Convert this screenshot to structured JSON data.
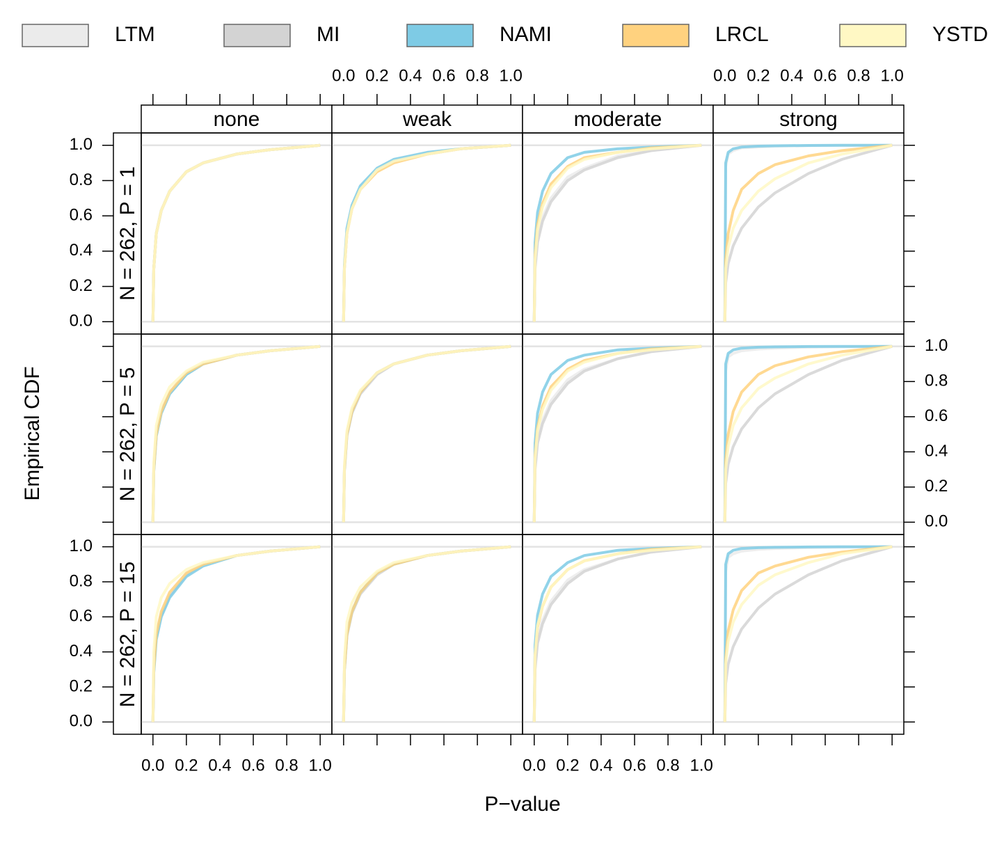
{
  "chart_data": {
    "type": "line",
    "x_label": "P−value",
    "y_label": "Empirical CDF",
    "columns": [
      "none",
      "weak",
      "moderate",
      "strong"
    ],
    "series": [
      {
        "name": "LTM",
        "color": "#ebebeb"
      },
      {
        "name": "MI",
        "color": "#d3d3d3"
      },
      {
        "name": "NAMI",
        "color": "#7ecbe5"
      },
      {
        "name": "LRCL",
        "color": "#ffd27f"
      },
      {
        "name": "YSTD",
        "color": "#fff8c4"
      }
    ],
    "x": [
      0,
      0.005,
      0.02,
      0.05,
      0.1,
      0.2,
      0.3,
      0.5,
      0.7,
      1.0
    ],
    "xlim": [
      -0.07,
      1.07
    ],
    "ylim": [
      -0.07,
      1.07
    ],
    "xticks": [
      {
        "value": 0,
        "label": "0.0"
      },
      0.2,
      0.4,
      0.6,
      0.8,
      {
        "value": 1,
        "label": "1.0"
      }
    ],
    "yticks": [
      {
        "value": 0,
        "label": "0.0"
      },
      0.2,
      0.4,
      0.6,
      0.8,
      {
        "value": 1,
        "label": "1.0"
      }
    ],
    "rows": [
      {
        "label": "N = 262, P = 1",
        "panels": [
          {
            "values": [
              [
                0,
                0.3,
                0.5,
                0.63,
                0.74,
                0.85,
                0.9,
                0.95,
                0.975,
                1
              ],
              [
                0,
                0.3,
                0.5,
                0.63,
                0.74,
                0.85,
                0.9,
                0.95,
                0.975,
                1
              ],
              [
                0,
                0.3,
                0.5,
                0.63,
                0.74,
                0.85,
                0.9,
                0.95,
                0.975,
                1
              ],
              [
                0,
                0.3,
                0.5,
                0.63,
                0.74,
                0.85,
                0.9,
                0.95,
                0.975,
                1
              ],
              [
                0,
                0.3,
                0.5,
                0.63,
                0.74,
                0.85,
                0.9,
                0.95,
                0.975,
                1
              ]
            ]
          },
          {
            "values": [
              [
                0,
                0.3,
                0.5,
                0.64,
                0.75,
                0.86,
                0.91,
                0.95,
                0.98,
                1
              ],
              [
                0,
                0.3,
                0.5,
                0.64,
                0.75,
                0.86,
                0.91,
                0.95,
                0.98,
                1
              ],
              [
                0,
                0.32,
                0.53,
                0.66,
                0.77,
                0.87,
                0.92,
                0.96,
                0.98,
                1
              ],
              [
                0,
                0.3,
                0.5,
                0.64,
                0.75,
                0.85,
                0.9,
                0.95,
                0.98,
                1
              ],
              [
                0,
                0.3,
                0.5,
                0.64,
                0.75,
                0.86,
                0.91,
                0.95,
                0.98,
                1
              ]
            ]
          },
          {
            "values": [
              [
                0,
                0.32,
                0.47,
                0.59,
                0.7,
                0.82,
                0.87,
                0.94,
                0.97,
                1
              ],
              [
                0,
                0.3,
                0.45,
                0.57,
                0.68,
                0.8,
                0.86,
                0.93,
                0.97,
                1
              ],
              [
                0,
                0.45,
                0.62,
                0.74,
                0.84,
                0.93,
                0.96,
                0.98,
                0.99,
                1
              ],
              [
                0,
                0.38,
                0.55,
                0.67,
                0.78,
                0.88,
                0.93,
                0.96,
                0.985,
                1
              ],
              [
                0,
                0.35,
                0.52,
                0.65,
                0.76,
                0.87,
                0.92,
                0.96,
                0.98,
                1
              ]
            ]
          },
          {
            "values": [
              [
                0,
                0.88,
                0.95,
                0.97,
                0.985,
                0.99,
                0.995,
                0.998,
                1,
                1
              ],
              [
                0,
                0.22,
                0.33,
                0.43,
                0.53,
                0.65,
                0.73,
                0.84,
                0.92,
                1
              ],
              [
                0,
                0.9,
                0.96,
                0.98,
                0.99,
                0.995,
                0.997,
                0.999,
                1,
                1
              ],
              [
                0,
                0.35,
                0.5,
                0.63,
                0.75,
                0.84,
                0.89,
                0.94,
                0.97,
                1
              ],
              [
                0,
                0.3,
                0.42,
                0.53,
                0.63,
                0.74,
                0.81,
                0.9,
                0.95,
                1
              ]
            ]
          }
        ]
      },
      {
        "label": "N = 262, P = 5",
        "panels": [
          {
            "values": [
              [
                0,
                0.3,
                0.5,
                0.63,
                0.74,
                0.85,
                0.9,
                0.95,
                0.975,
                1
              ],
              [
                0,
                0.29,
                0.49,
                0.62,
                0.73,
                0.84,
                0.9,
                0.95,
                0.975,
                1
              ],
              [
                0,
                0.29,
                0.49,
                0.62,
                0.73,
                0.84,
                0.9,
                0.95,
                0.975,
                1
              ],
              [
                0,
                0.3,
                0.5,
                0.63,
                0.74,
                0.85,
                0.9,
                0.95,
                0.975,
                1
              ],
              [
                0,
                0.34,
                0.55,
                0.67,
                0.77,
                0.86,
                0.91,
                0.95,
                0.975,
                1
              ]
            ]
          },
          {
            "values": [
              [
                0,
                0.29,
                0.49,
                0.62,
                0.73,
                0.84,
                0.9,
                0.95,
                0.975,
                1
              ],
              [
                0,
                0.29,
                0.49,
                0.62,
                0.73,
                0.84,
                0.9,
                0.95,
                0.975,
                1
              ],
              [
                0,
                0.3,
                0.5,
                0.63,
                0.74,
                0.85,
                0.9,
                0.95,
                0.975,
                1
              ],
              [
                0,
                0.3,
                0.5,
                0.63,
                0.74,
                0.85,
                0.9,
                0.95,
                0.975,
                1
              ],
              [
                0,
                0.32,
                0.52,
                0.65,
                0.75,
                0.85,
                0.9,
                0.95,
                0.975,
                1
              ]
            ]
          },
          {
            "values": [
              [
                0,
                0.32,
                0.47,
                0.58,
                0.69,
                0.81,
                0.87,
                0.93,
                0.97,
                1
              ],
              [
                0,
                0.3,
                0.45,
                0.56,
                0.67,
                0.79,
                0.86,
                0.93,
                0.97,
                1
              ],
              [
                0,
                0.45,
                0.62,
                0.74,
                0.84,
                0.92,
                0.95,
                0.98,
                0.99,
                1
              ],
              [
                0,
                0.38,
                0.54,
                0.66,
                0.77,
                0.87,
                0.92,
                0.96,
                0.985,
                1
              ],
              [
                0,
                0.36,
                0.52,
                0.64,
                0.75,
                0.86,
                0.91,
                0.96,
                0.98,
                1
              ]
            ]
          },
          {
            "values": [
              [
                0,
                0.86,
                0.94,
                0.96,
                0.975,
                0.985,
                0.99,
                0.995,
                0.998,
                1
              ],
              [
                0,
                0.22,
                0.33,
                0.43,
                0.53,
                0.65,
                0.73,
                0.84,
                0.92,
                1
              ],
              [
                0,
                0.9,
                0.96,
                0.98,
                0.99,
                0.995,
                0.997,
                0.999,
                1,
                1
              ],
              [
                0,
                0.35,
                0.5,
                0.63,
                0.74,
                0.84,
                0.89,
                0.94,
                0.97,
                1
              ],
              [
                0,
                0.3,
                0.43,
                0.55,
                0.65,
                0.76,
                0.82,
                0.9,
                0.95,
                1
              ]
            ]
          }
        ]
      },
      {
        "label": "N = 262, P = 15",
        "panels": [
          {
            "values": [
              [
                0,
                0.3,
                0.5,
                0.63,
                0.74,
                0.85,
                0.9,
                0.95,
                0.975,
                1
              ],
              [
                0,
                0.29,
                0.48,
                0.61,
                0.72,
                0.84,
                0.9,
                0.95,
                0.975,
                1
              ],
              [
                0,
                0.28,
                0.47,
                0.6,
                0.71,
                0.83,
                0.89,
                0.95,
                0.975,
                1
              ],
              [
                0,
                0.3,
                0.5,
                0.63,
                0.74,
                0.85,
                0.9,
                0.95,
                0.975,
                1
              ],
              [
                0,
                0.4,
                0.6,
                0.71,
                0.79,
                0.87,
                0.91,
                0.95,
                0.975,
                1
              ]
            ]
          },
          {
            "values": [
              [
                0,
                0.3,
                0.5,
                0.63,
                0.74,
                0.85,
                0.9,
                0.95,
                0.975,
                1
              ],
              [
                0,
                0.29,
                0.49,
                0.62,
                0.73,
                0.84,
                0.9,
                0.95,
                0.975,
                1
              ],
              [
                0,
                0.3,
                0.5,
                0.63,
                0.74,
                0.85,
                0.9,
                0.95,
                0.975,
                1
              ],
              [
                0,
                0.3,
                0.5,
                0.63,
                0.74,
                0.85,
                0.9,
                0.95,
                0.975,
                1
              ],
              [
                0,
                0.36,
                0.57,
                0.68,
                0.77,
                0.86,
                0.91,
                0.95,
                0.975,
                1
              ]
            ]
          },
          {
            "values": [
              [
                0,
                0.32,
                0.47,
                0.58,
                0.69,
                0.81,
                0.87,
                0.93,
                0.97,
                1
              ],
              [
                0,
                0.3,
                0.45,
                0.56,
                0.67,
                0.79,
                0.86,
                0.93,
                0.97,
                1
              ],
              [
                0,
                0.44,
                0.61,
                0.73,
                0.83,
                0.91,
                0.95,
                0.98,
                0.99,
                1
              ],
              [
                0,
                0.38,
                0.54,
                0.66,
                0.77,
                0.87,
                0.92,
                0.96,
                0.985,
                1
              ],
              [
                0,
                0.38,
                0.55,
                0.66,
                0.77,
                0.87,
                0.92,
                0.96,
                0.98,
                1
              ]
            ]
          },
          {
            "values": [
              [
                0,
                0.86,
                0.94,
                0.96,
                0.975,
                0.985,
                0.99,
                0.995,
                0.998,
                1
              ],
              [
                0,
                0.22,
                0.33,
                0.43,
                0.53,
                0.65,
                0.73,
                0.84,
                0.92,
                1
              ],
              [
                0,
                0.9,
                0.96,
                0.98,
                0.99,
                0.995,
                0.997,
                0.999,
                1,
                1
              ],
              [
                0,
                0.36,
                0.52,
                0.64,
                0.75,
                0.85,
                0.89,
                0.94,
                0.97,
                1
              ],
              [
                0,
                0.33,
                0.46,
                0.57,
                0.67,
                0.78,
                0.84,
                0.91,
                0.96,
                1
              ]
            ]
          }
        ]
      }
    ]
  }
}
